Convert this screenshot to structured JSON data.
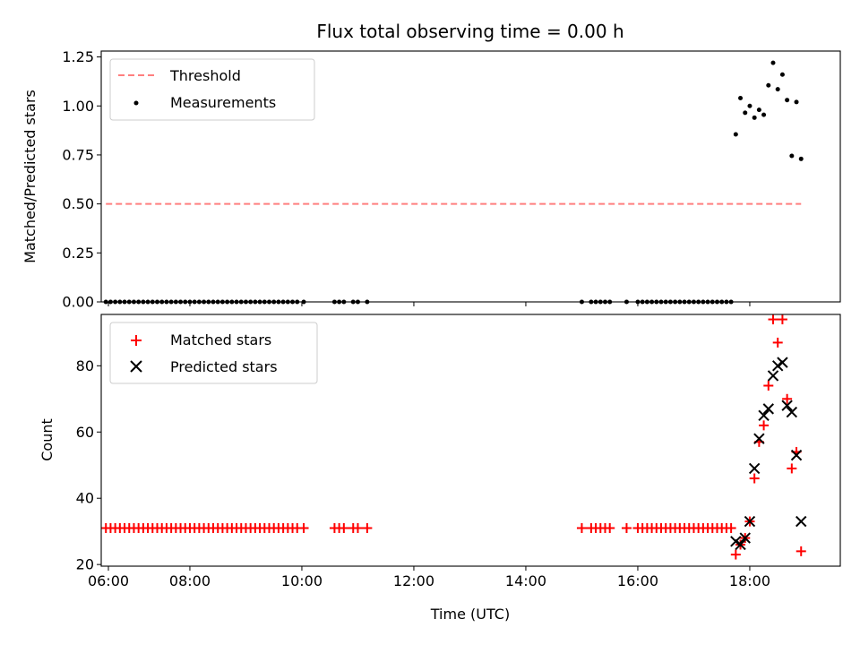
{
  "chart_data": [
    {
      "type": "scatter",
      "title": "Flux total observing time = 0.00 h",
      "xlabel": "",
      "ylabel": "Matched/Predicted stars",
      "xlim": [
        "06:25",
        "19:37"
      ],
      "ylim": [
        0,
        1.28
      ],
      "x_ticks": [
        "06:00",
        "08:00",
        "10:00",
        "12:00",
        "14:00",
        "16:00",
        "18:00"
      ],
      "y_ticks": [
        "0.00",
        "0.25",
        "0.50",
        "0.75",
        "1.00",
        "1.25"
      ],
      "legend_position": "upper-left",
      "threshold": {
        "name": "Threshold",
        "y": 0.5,
        "x_range": [
          "06:30",
          "18:55"
        ],
        "color": "#ff7f7f",
        "style": "dashed"
      },
      "series": [
        {
          "name": "Measurements",
          "color": "#000000",
          "marker": "dot",
          "points": [
            [
              "06:30",
              0
            ],
            [
              "06:35",
              0
            ],
            [
              "06:40",
              0
            ],
            [
              "06:45",
              0
            ],
            [
              "06:50",
              0
            ],
            [
              "06:55",
              0
            ],
            [
              "07:00",
              0
            ],
            [
              "07:05",
              0
            ],
            [
              "07:10",
              0
            ],
            [
              "07:15",
              0
            ],
            [
              "07:20",
              0
            ],
            [
              "07:25",
              0
            ],
            [
              "07:30",
              0
            ],
            [
              "07:35",
              0
            ],
            [
              "07:40",
              0
            ],
            [
              "07:45",
              0
            ],
            [
              "07:50",
              0
            ],
            [
              "07:55",
              0
            ],
            [
              "08:00",
              0
            ],
            [
              "08:05",
              0
            ],
            [
              "08:10",
              0
            ],
            [
              "08:15",
              0
            ],
            [
              "08:20",
              0
            ],
            [
              "08:25",
              0
            ],
            [
              "08:30",
              0
            ],
            [
              "08:35",
              0
            ],
            [
              "08:40",
              0
            ],
            [
              "08:45",
              0
            ],
            [
              "08:50",
              0
            ],
            [
              "08:55",
              0
            ],
            [
              "09:00",
              0
            ],
            [
              "09:05",
              0
            ],
            [
              "09:10",
              0
            ],
            [
              "09:15",
              0
            ],
            [
              "09:20",
              0
            ],
            [
              "09:25",
              0
            ],
            [
              "09:30",
              0
            ],
            [
              "09:35",
              0
            ],
            [
              "09:40",
              0
            ],
            [
              "09:45",
              0
            ],
            [
              "09:50",
              0
            ],
            [
              "09:55",
              0
            ],
            [
              "10:02",
              0
            ],
            [
              "10:35",
              0
            ],
            [
              "10:40",
              0
            ],
            [
              "10:45",
              0
            ],
            [
              "10:55",
              0
            ],
            [
              "11:00",
              0
            ],
            [
              "11:10",
              0
            ],
            [
              "15:00",
              0
            ],
            [
              "15:10",
              0
            ],
            [
              "15:15",
              0
            ],
            [
              "15:20",
              0
            ],
            [
              "15:25",
              0
            ],
            [
              "15:30",
              0
            ],
            [
              "15:48",
              0
            ],
            [
              "16:00",
              0
            ],
            [
              "16:05",
              0
            ],
            [
              "16:10",
              0
            ],
            [
              "16:15",
              0
            ],
            [
              "16:20",
              0
            ],
            [
              "16:25",
              0
            ],
            [
              "16:30",
              0
            ],
            [
              "16:35",
              0
            ],
            [
              "16:40",
              0
            ],
            [
              "16:45",
              0
            ],
            [
              "16:50",
              0
            ],
            [
              "16:55",
              0
            ],
            [
              "17:00",
              0
            ],
            [
              "17:05",
              0
            ],
            [
              "17:10",
              0
            ],
            [
              "17:15",
              0
            ],
            [
              "17:20",
              0
            ],
            [
              "17:25",
              0
            ],
            [
              "17:30",
              0
            ],
            [
              "17:35",
              0
            ],
            [
              "17:40",
              0
            ],
            [
              "17:45",
              0.855
            ],
            [
              "17:50",
              1.04
            ],
            [
              "17:55",
              0.965
            ],
            [
              "18:00",
              1.0
            ],
            [
              "18:05",
              0.94
            ],
            [
              "18:10",
              0.98
            ],
            [
              "18:15",
              0.955
            ],
            [
              "18:20",
              1.105
            ],
            [
              "18:25",
              1.22
            ],
            [
              "18:30",
              1.085
            ],
            [
              "18:35",
              1.16
            ],
            [
              "18:40",
              1.03
            ],
            [
              "18:45",
              0.745
            ],
            [
              "18:50",
              1.02
            ],
            [
              "18:55",
              0.73
            ]
          ]
        }
      ]
    },
    {
      "type": "scatter",
      "title": "",
      "xlabel": "Time (UTC)",
      "ylabel": "Count",
      "xlim": [
        "06:25",
        "19:37"
      ],
      "ylim": [
        19.5,
        95.5
      ],
      "x_ticks": [
        "06:00",
        "08:00",
        "10:00",
        "12:00",
        "14:00",
        "16:00",
        "18:00"
      ],
      "y_ticks": [
        "20",
        "40",
        "60",
        "80"
      ],
      "legend_position": "upper-left",
      "series": [
        {
          "name": "Matched stars",
          "color": "#ff0000",
          "marker": "plus",
          "points": [
            [
              "06:30",
              31
            ],
            [
              "06:35",
              31
            ],
            [
              "06:40",
              31
            ],
            [
              "06:45",
              31
            ],
            [
              "06:50",
              31
            ],
            [
              "06:55",
              31
            ],
            [
              "07:00",
              31
            ],
            [
              "07:05",
              31
            ],
            [
              "07:10",
              31
            ],
            [
              "07:15",
              31
            ],
            [
              "07:20",
              31
            ],
            [
              "07:25",
              31
            ],
            [
              "07:30",
              31
            ],
            [
              "07:35",
              31
            ],
            [
              "07:40",
              31
            ],
            [
              "07:45",
              31
            ],
            [
              "07:50",
              31
            ],
            [
              "07:55",
              31
            ],
            [
              "08:00",
              31
            ],
            [
              "08:05",
              31
            ],
            [
              "08:10",
              31
            ],
            [
              "08:15",
              31
            ],
            [
              "08:20",
              31
            ],
            [
              "08:25",
              31
            ],
            [
              "08:30",
              31
            ],
            [
              "08:35",
              31
            ],
            [
              "08:40",
              31
            ],
            [
              "08:45",
              31
            ],
            [
              "08:50",
              31
            ],
            [
              "08:55",
              31
            ],
            [
              "09:00",
              31
            ],
            [
              "09:05",
              31
            ],
            [
              "09:10",
              31
            ],
            [
              "09:15",
              31
            ],
            [
              "09:20",
              31
            ],
            [
              "09:25",
              31
            ],
            [
              "09:30",
              31
            ],
            [
              "09:35",
              31
            ],
            [
              "09:40",
              31
            ],
            [
              "09:45",
              31
            ],
            [
              "09:50",
              31
            ],
            [
              "09:55",
              31
            ],
            [
              "10:02",
              31
            ],
            [
              "10:35",
              31
            ],
            [
              "10:40",
              31
            ],
            [
              "10:45",
              31
            ],
            [
              "10:55",
              31
            ],
            [
              "11:00",
              31
            ],
            [
              "11:10",
              31
            ],
            [
              "15:00",
              31
            ],
            [
              "15:10",
              31
            ],
            [
              "15:15",
              31
            ],
            [
              "15:20",
              31
            ],
            [
              "15:25",
              31
            ],
            [
              "15:30",
              31
            ],
            [
              "15:48",
              31
            ],
            [
              "16:00",
              31
            ],
            [
              "16:05",
              31
            ],
            [
              "16:10",
              31
            ],
            [
              "16:15",
              31
            ],
            [
              "16:20",
              31
            ],
            [
              "16:25",
              31
            ],
            [
              "16:30",
              31
            ],
            [
              "16:35",
              31
            ],
            [
              "16:40",
              31
            ],
            [
              "16:45",
              31
            ],
            [
              "16:50",
              31
            ],
            [
              "16:55",
              31
            ],
            [
              "17:00",
              31
            ],
            [
              "17:05",
              31
            ],
            [
              "17:10",
              31
            ],
            [
              "17:15",
              31
            ],
            [
              "17:20",
              31
            ],
            [
              "17:25",
              31
            ],
            [
              "17:30",
              31
            ],
            [
              "17:35",
              31
            ],
            [
              "17:40",
              31
            ],
            [
              "17:45",
              23
            ],
            [
              "17:50",
              26
            ],
            [
              "17:55",
              28
            ],
            [
              "18:00",
              33
            ],
            [
              "18:05",
              46
            ],
            [
              "18:10",
              57
            ],
            [
              "18:15",
              62
            ],
            [
              "18:20",
              74
            ],
            [
              "18:25",
              94
            ],
            [
              "18:30",
              87
            ],
            [
              "18:35",
              94
            ],
            [
              "18:40",
              70
            ],
            [
              "18:45",
              49
            ],
            [
              "18:50",
              54
            ],
            [
              "18:55",
              24
            ]
          ]
        },
        {
          "name": "Predicted stars",
          "color": "#000000",
          "marker": "x",
          "points": [
            [
              "17:45",
              27
            ],
            [
              "17:50",
              26
            ],
            [
              "17:55",
              28
            ],
            [
              "18:00",
              33
            ],
            [
              "18:05",
              49
            ],
            [
              "18:10",
              58
            ],
            [
              "18:15",
              65
            ],
            [
              "18:20",
              67
            ],
            [
              "18:25",
              77
            ],
            [
              "18:30",
              80
            ],
            [
              "18:35",
              81
            ],
            [
              "18:40",
              68
            ],
            [
              "18:45",
              66
            ],
            [
              "18:50",
              53
            ],
            [
              "18:55",
              33
            ]
          ]
        }
      ]
    }
  ]
}
